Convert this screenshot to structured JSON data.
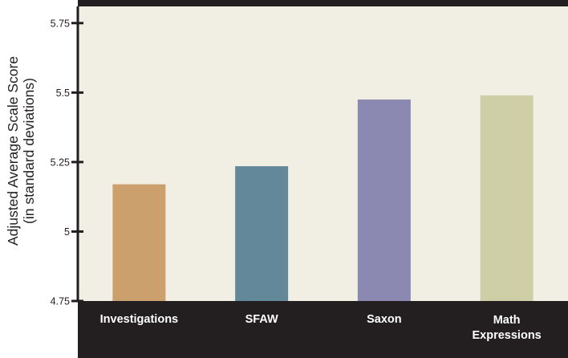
{
  "chart_data": {
    "type": "bar",
    "title": "",
    "xlabel": "",
    "ylabel": "Adjusted Average Scale Score",
    "ylabel_sub": "(in standard deviations)",
    "ylim": [
      4.75,
      5.81
    ],
    "yticks": [
      4.75,
      5,
      5.25,
      5.5,
      5.75
    ],
    "ytick_labels": [
      "4.75",
      "5",
      "5.25",
      "5.5",
      "5.75"
    ],
    "categories": [
      [
        "Investigations"
      ],
      [
        "SFAW"
      ],
      [
        "Saxon"
      ],
      [
        "Math",
        "Expressions"
      ]
    ],
    "values": [
      5.17,
      5.235,
      5.475,
      5.49
    ],
    "bar_colors": [
      "#cca06d",
      "#62889a",
      "#8b89b1",
      "#cfcfa7"
    ],
    "colors": {
      "plot_bg": "#f1efe4",
      "frame": "#231f20",
      "category_text": "#ffffff",
      "axis_text": "#231f20"
    }
  }
}
